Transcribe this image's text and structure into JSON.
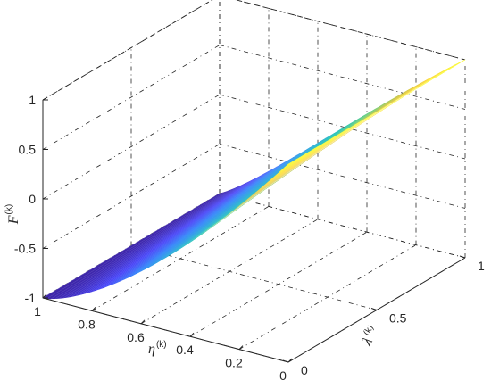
{
  "chart_data": {
    "type": "surface",
    "title": "",
    "zlabel": {
      "base": "F",
      "sup": "(k)"
    },
    "ylabel": {
      "base": "η",
      "sup": "(k)"
    },
    "xlabel": {
      "base": "λ",
      "sup": "(k)"
    },
    "zlim": [
      -1,
      1
    ],
    "ylim": [
      0,
      1
    ],
    "xlim": [
      0,
      1
    ],
    "z_ticks": [
      "1",
      "0.5",
      "0",
      "-0.5",
      "-1"
    ],
    "y_ticks": [
      "1",
      "0.8",
      "0.6",
      "0.4",
      "0.2",
      "0"
    ],
    "x_ticks": [
      "0",
      "0.5",
      "1"
    ],
    "grid": true,
    "colormap": "parula",
    "colors": [
      "#3e26a8",
      "#4743f8",
      "#2c81f9",
      "#1aa3d8",
      "#10bfb0",
      "#5fcb73",
      "#c5bf33",
      "#fdd226",
      "#f9fb15"
    ],
    "corners": [
      {
        "lambda": 0,
        "eta": 1,
        "F": -1
      },
      {
        "lambda": 0,
        "eta": 0,
        "F": 1
      },
      {
        "lambda": 1,
        "eta": 1,
        "F": -1
      },
      {
        "lambda": 1,
        "eta": 0,
        "F": 1
      }
    ],
    "samples": [
      {
        "lambda": 0,
        "eta": 0.5,
        "F": -0.5
      },
      {
        "lambda": 1,
        "eta": 0.5,
        "F": -0.25
      }
    ]
  }
}
